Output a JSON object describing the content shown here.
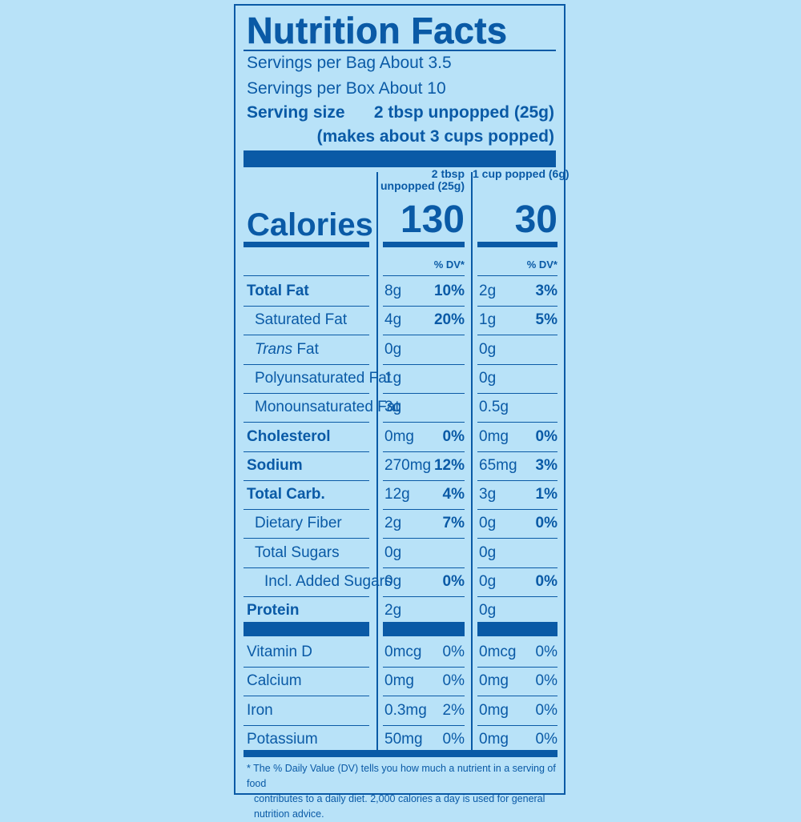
{
  "title": "Nutrition Facts",
  "servings_bag": "Servings per Bag About 3.5",
  "servings_box": "Servings per Box About 10",
  "serving_size_label": "Serving size",
  "serving_size_value": "2 tbsp unpopped (25g)",
  "serving_size_note": "(makes about 3 cups popped)",
  "col1_header": "2 tbsp unpopped (25g)",
  "col2_header": "1 cup popped (6g)",
  "calories_label": "Calories",
  "calories_col1": "130",
  "calories_col2": "30",
  "dv_header": "% DV*",
  "nutrients": [
    {
      "name": "Total Fat",
      "bold": true,
      "indent": 0,
      "a1": "8g",
      "d1": "10%",
      "a2": "2g",
      "d2": "3%"
    },
    {
      "name": "Saturated Fat",
      "bold": false,
      "indent": 1,
      "a1": "4g",
      "d1": "20%",
      "a2": "1g",
      "d2": "5%"
    },
    {
      "name_prefix": "Trans",
      "name": " Fat",
      "bold": false,
      "indent": 1,
      "a1": "0g",
      "d1": "",
      "a2": "0g",
      "d2": ""
    },
    {
      "name": "Polyunsaturated Fat",
      "bold": false,
      "indent": 1,
      "a1": "1g",
      "d1": "",
      "a2": "0g",
      "d2": ""
    },
    {
      "name": "Monounsaturated Fat",
      "bold": false,
      "indent": 1,
      "a1": "3g",
      "d1": "",
      "a2": "0.5g",
      "d2": ""
    },
    {
      "name": "Cholesterol",
      "bold": true,
      "indent": 0,
      "a1": "0mg",
      "d1": "0%",
      "a2": "0mg",
      "d2": "0%"
    },
    {
      "name": "Sodium",
      "bold": true,
      "indent": 0,
      "a1": "270mg",
      "d1": "12%",
      "a2": "65mg",
      "d2": "3%"
    },
    {
      "name": "Total Carb.",
      "bold": true,
      "indent": 0,
      "a1": "12g",
      "d1": "4%",
      "a2": "3g",
      "d2": "1%"
    },
    {
      "name": "Dietary Fiber",
      "bold": false,
      "indent": 1,
      "a1": "2g",
      "d1": "7%",
      "a2": "0g",
      "d2": "0%"
    },
    {
      "name": "Total Sugars",
      "bold": false,
      "indent": 1,
      "a1": "0g",
      "d1": "",
      "a2": "0g",
      "d2": ""
    },
    {
      "name": "Incl. Added Sugars",
      "bold": false,
      "indent": 2,
      "a1": "0g",
      "d1": "0%",
      "a2": "0g",
      "d2": "0%"
    },
    {
      "name": "Protein",
      "bold": true,
      "indent": 0,
      "a1": "2g",
      "d1": "",
      "a2": "0g",
      "d2": ""
    }
  ],
  "vitamins": [
    {
      "name": "Vitamin D",
      "a1": "0mcg",
      "d1": "0%",
      "a2": "0mcg",
      "d2": "0%"
    },
    {
      "name": "Calcium",
      "a1": "0mg",
      "d1": "0%",
      "a2": "0mg",
      "d2": "0%"
    },
    {
      "name": "Iron",
      "a1": "0.3mg",
      "d1": "2%",
      "a2": "0mg",
      "d2": "0%"
    },
    {
      "name": "Potassium",
      "a1": "50mg",
      "d1": "0%",
      "a2": "0mg",
      "d2": "0%"
    }
  ],
  "footnote_line1": "* The % Daily Value (DV) tells you how much a nutrient in a serving of food",
  "footnote_line2": "contributes to a daily diet. 2,000 calories a day is used for general nutrition advice.",
  "colors": {
    "background": "#b8e2f8",
    "ink": "#0a5aa6"
  }
}
